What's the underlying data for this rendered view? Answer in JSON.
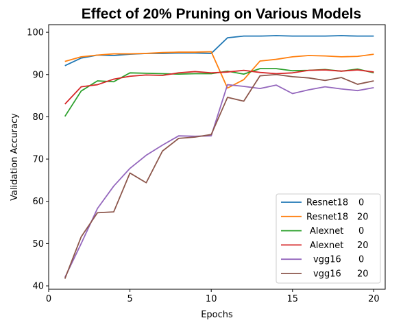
{
  "chart_data": {
    "type": "line",
    "title": "Effect of 20% Pruning on Various Models",
    "xlabel": "Epochs",
    "ylabel": "Validation Accuracy",
    "xlim": [
      0,
      20.7
    ],
    "ylim": [
      39.2,
      101.8
    ],
    "xticks": [
      0,
      5,
      10,
      15,
      20
    ],
    "yticks": [
      40,
      50,
      60,
      70,
      80,
      90,
      100
    ],
    "grid": false,
    "legend_position": "lower-right",
    "x": [
      1,
      2,
      3,
      4,
      5,
      6,
      7,
      8,
      9,
      10,
      11,
      12,
      13,
      14,
      15,
      16,
      17,
      18,
      19,
      20
    ],
    "series": [
      {
        "name": "Resnet18",
        "pct": "0",
        "color": "#1f77b4",
        "values": [
          92.1,
          93.9,
          94.6,
          94.5,
          94.8,
          95.0,
          95.0,
          95.1,
          95.1,
          95.0,
          98.7,
          99.1,
          99.1,
          99.2,
          99.1,
          99.1,
          99.1,
          99.2,
          99.1,
          99.1
        ]
      },
      {
        "name": "Resnet18",
        "pct": "20",
        "color": "#ff7f0e",
        "values": [
          93.1,
          94.2,
          94.6,
          94.9,
          94.9,
          95.0,
          95.2,
          95.3,
          95.3,
          95.4,
          86.8,
          88.8,
          93.2,
          93.6,
          94.2,
          94.5,
          94.4,
          94.2,
          94.3,
          94.8
        ]
      },
      {
        "name": "Alexnet",
        "pct": "0",
        "color": "#2ca02c",
        "values": [
          80.1,
          86.1,
          88.5,
          88.3,
          90.4,
          90.3,
          90.2,
          90.1,
          90.2,
          90.2,
          90.8,
          90.1,
          91.4,
          91.4,
          90.9,
          91.0,
          91.2,
          90.8,
          91.3,
          90.4
        ]
      },
      {
        "name": "Alexnet",
        "pct": "20",
        "color": "#d62728",
        "values": [
          83.0,
          87.1,
          87.6,
          88.9,
          89.6,
          89.9,
          89.8,
          90.4,
          90.7,
          90.4,
          90.6,
          91.0,
          90.5,
          90.2,
          90.4,
          91.0,
          91.1,
          90.8,
          91.1,
          90.6
        ]
      },
      {
        "name": "vgg16",
        "pct": "0",
        "color": "#9467bd",
        "values": [
          42.0,
          50.0,
          58.3,
          63.6,
          67.8,
          70.9,
          73.3,
          75.5,
          75.4,
          75.5,
          87.6,
          87.2,
          86.7,
          87.5,
          85.5,
          86.4,
          87.1,
          86.6,
          86.2,
          86.9
        ]
      },
      {
        "name": "vgg16",
        "pct": "20",
        "color": "#8c564b",
        "values": [
          41.7,
          51.6,
          57.3,
          57.5,
          66.7,
          64.4,
          71.9,
          74.9,
          75.2,
          75.8,
          84.6,
          83.7,
          89.7,
          90.0,
          89.5,
          89.2,
          88.6,
          89.3,
          87.7,
          88.5
        ]
      }
    ]
  }
}
